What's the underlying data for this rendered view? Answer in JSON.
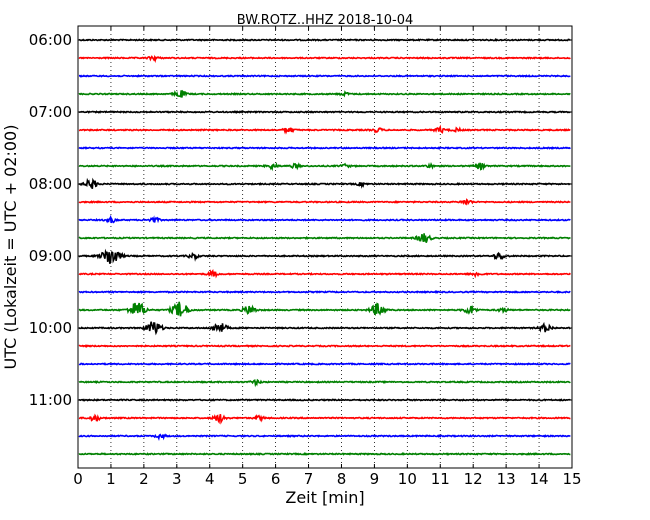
{
  "chart_data": {
    "type": "line",
    "title": "BW.ROTZ..HHZ 2018-10-04",
    "xlabel": "Zeit  [min]",
    "ylabel": "UTC (Lokalzeit = UTC + 02:00)",
    "xlim": [
      0,
      15
    ],
    "x_ticks": [
      0,
      1,
      2,
      3,
      4,
      5,
      6,
      7,
      8,
      9,
      10,
      11,
      12,
      13,
      14,
      15
    ],
    "x_tick_labels": [
      "0",
      "1",
      "2",
      "3",
      "4",
      "5",
      "6",
      "7",
      "8",
      "9",
      "10",
      "11",
      "12",
      "13",
      "14",
      "15"
    ],
    "vertical_grid": "dotted",
    "trace_colors": [
      "#000000",
      "#ff0000",
      "#0000ff",
      "#008000"
    ],
    "rows_per_hour": 4,
    "traces": [
      {
        "start": "06:00",
        "events": []
      },
      {
        "start": "06:15",
        "events": [
          [
            2.3,
            0.4
          ]
        ]
      },
      {
        "start": "06:30",
        "events": []
      },
      {
        "start": "06:45",
        "events": [
          [
            3.1,
            0.7
          ],
          [
            8.1,
            0.3
          ]
        ]
      },
      {
        "start": "07:00",
        "events": []
      },
      {
        "start": "07:15",
        "events": [
          [
            6.4,
            0.5
          ],
          [
            9.1,
            0.4
          ],
          [
            11.0,
            0.5
          ],
          [
            11.5,
            0.3
          ]
        ]
      },
      {
        "start": "07:30",
        "events": []
      },
      {
        "start": "07:45",
        "events": [
          [
            5.9,
            0.5
          ],
          [
            6.6,
            0.4
          ],
          [
            8.1,
            0.3
          ],
          [
            10.7,
            0.3
          ],
          [
            12.2,
            0.6
          ]
        ]
      },
      {
        "start": "08:00",
        "events": [
          [
            0.4,
            0.9
          ],
          [
            8.6,
            0.3
          ]
        ]
      },
      {
        "start": "08:15",
        "events": [
          [
            11.8,
            0.5
          ]
        ]
      },
      {
        "start": "08:30",
        "events": [
          [
            1.0,
            0.5
          ],
          [
            2.3,
            0.5
          ]
        ]
      },
      {
        "start": "08:45",
        "events": [
          [
            10.5,
            1.0
          ]
        ]
      },
      {
        "start": "09:00",
        "events": [
          [
            1.0,
            1.9
          ],
          [
            3.5,
            0.5
          ],
          [
            12.8,
            0.7
          ]
        ]
      },
      {
        "start": "09:15",
        "events": [
          [
            4.1,
            0.5
          ],
          [
            12.1,
            0.4
          ]
        ]
      },
      {
        "start": "09:30",
        "events": []
      },
      {
        "start": "09:45",
        "events": [
          [
            1.8,
            1.6
          ],
          [
            3.1,
            1.6
          ],
          [
            5.2,
            0.9
          ],
          [
            9.1,
            1.2
          ],
          [
            11.9,
            0.8
          ],
          [
            12.9,
            0.4
          ]
        ]
      },
      {
        "start": "10:00",
        "events": [
          [
            2.3,
            1.4
          ],
          [
            4.3,
            1.1
          ],
          [
            14.2,
            0.8
          ]
        ]
      },
      {
        "start": "10:15",
        "events": []
      },
      {
        "start": "10:30",
        "events": []
      },
      {
        "start": "10:45",
        "events": [
          [
            5.4,
            0.4
          ]
        ]
      },
      {
        "start": "11:00",
        "events": []
      },
      {
        "start": "11:15",
        "events": [
          [
            0.5,
            0.6
          ],
          [
            4.3,
            0.8
          ],
          [
            5.5,
            0.4
          ]
        ]
      },
      {
        "start": "11:30",
        "events": [
          [
            2.5,
            0.4
          ]
        ]
      },
      {
        "start": "11:45",
        "events": []
      }
    ],
    "hour_labels": [
      {
        "row": 0,
        "label": "06:00"
      },
      {
        "row": 4,
        "label": "07:00"
      },
      {
        "row": 8,
        "label": "08:00"
      },
      {
        "row": 12,
        "label": "09:00"
      },
      {
        "row": 16,
        "label": "10:00"
      },
      {
        "row": 20,
        "label": "11:00"
      }
    ]
  }
}
